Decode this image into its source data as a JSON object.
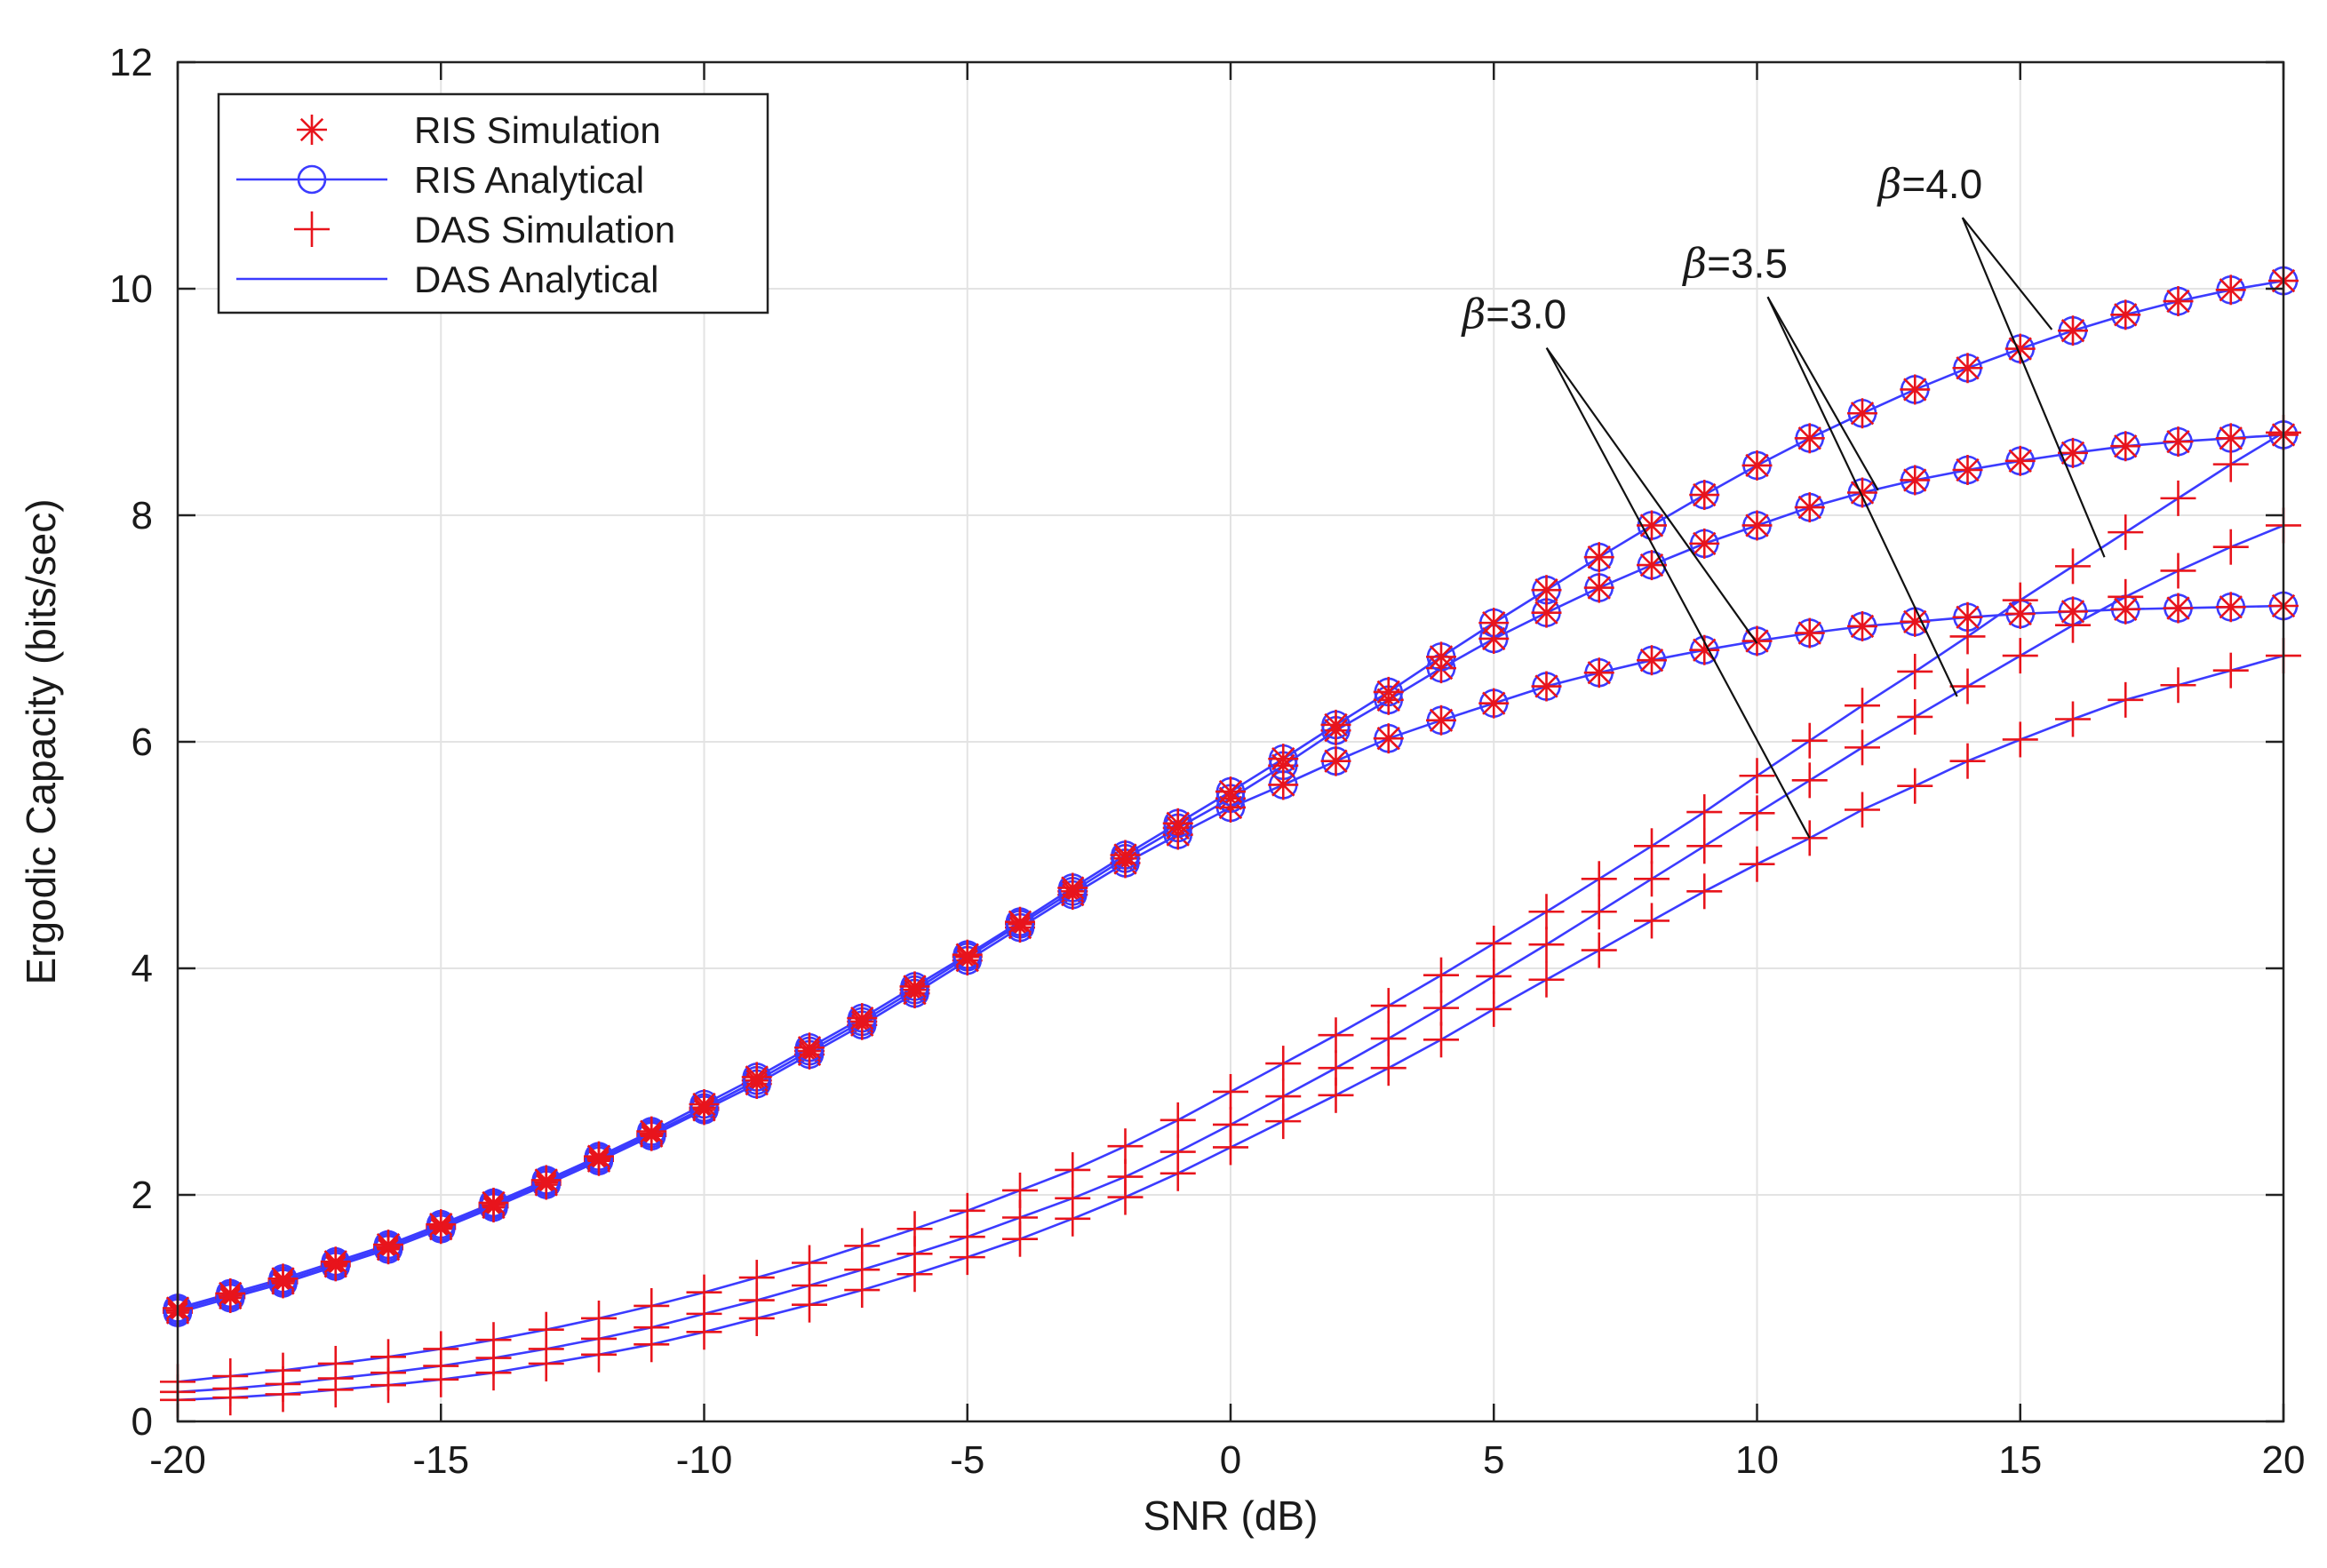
{
  "chart_data": {
    "type": "line",
    "xlabel": "SNR (dB)",
    "ylabel": "Ergodic Capacity (bits/sec)",
    "xlim": [
      -20,
      20
    ],
    "ylim": [
      0,
      12
    ],
    "xticks": [
      -20,
      -15,
      -10,
      -5,
      0,
      5,
      10,
      15,
      20
    ],
    "yticks": [
      0,
      2,
      4,
      6,
      8,
      10,
      12
    ],
    "xtick_labels": [
      "-20",
      "-15",
      "-10",
      "-5",
      "0",
      "5",
      "10",
      "15",
      "20"
    ],
    "ytick_labels": [
      "0",
      "2",
      "4",
      "6",
      "8",
      "10",
      "12"
    ],
    "grid": true,
    "legend_position": "top-left",
    "legend": [
      {
        "label": "RIS Simulation",
        "marker": "asterisk",
        "color": "#e8141c",
        "line": false
      },
      {
        "label": "RIS Analytical",
        "marker": "circle",
        "color": "#3b3bff",
        "line": true
      },
      {
        "label": "DAS Simulation",
        "marker": "plus",
        "color": "#e8141c",
        "line": false
      },
      {
        "label": "DAS Analytical",
        "marker": "none",
        "color": "#3b3bff",
        "line": true
      }
    ],
    "colors": {
      "simulation": "#e8141c",
      "analytical": "#3b3bff",
      "annotation": "#111111"
    },
    "x": [
      -20,
      -19,
      -18,
      -17,
      -16,
      -15,
      -14,
      -13,
      -12,
      -11,
      -10,
      -9,
      -8,
      -7,
      -6,
      -5,
      -4,
      -3,
      -2,
      -1,
      0,
      1,
      2,
      3,
      4,
      5,
      6,
      7,
      8,
      9,
      10,
      11,
      12,
      13,
      14,
      15,
      16,
      17,
      18,
      19,
      20
    ],
    "series": [
      {
        "name": "RIS, β=3.0",
        "system": "RIS",
        "beta": 3.0,
        "values": [
          0.96,
          1.09,
          1.22,
          1.37,
          1.52,
          1.7,
          1.89,
          2.09,
          2.3,
          2.52,
          2.75,
          2.98,
          3.24,
          3.5,
          3.78,
          4.07,
          4.36,
          4.65,
          4.93,
          5.18,
          5.42,
          5.62,
          5.83,
          6.03,
          6.19,
          6.34,
          6.49,
          6.61,
          6.72,
          6.81,
          6.89,
          6.96,
          7.02,
          7.06,
          7.1,
          7.13,
          7.15,
          7.17,
          7.18,
          7.19,
          7.2
        ]
      },
      {
        "name": "RIS, β=3.5",
        "system": "RIS",
        "beta": 3.5,
        "values": [
          0.98,
          1.11,
          1.24,
          1.39,
          1.54,
          1.72,
          1.91,
          2.11,
          2.32,
          2.54,
          2.77,
          3.01,
          3.27,
          3.53,
          3.81,
          4.1,
          4.39,
          4.68,
          4.97,
          5.24,
          5.5,
          5.79,
          6.1,
          6.37,
          6.65,
          6.91,
          7.14,
          7.36,
          7.56,
          7.75,
          7.91,
          8.07,
          8.2,
          8.31,
          8.4,
          8.48,
          8.55,
          8.61,
          8.65,
          8.68,
          8.71
        ]
      },
      {
        "name": "RIS, β=4.0",
        "system": "RIS",
        "beta": 4.0,
        "values": [
          1.0,
          1.13,
          1.26,
          1.41,
          1.56,
          1.74,
          1.93,
          2.13,
          2.34,
          2.56,
          2.8,
          3.04,
          3.3,
          3.56,
          3.84,
          4.12,
          4.41,
          4.71,
          5.0,
          5.28,
          5.56,
          5.85,
          6.15,
          6.44,
          6.75,
          7.05,
          7.34,
          7.63,
          7.91,
          8.18,
          8.44,
          8.68,
          8.9,
          9.11,
          9.3,
          9.47,
          9.63,
          9.77,
          9.89,
          9.99,
          10.07
        ]
      },
      {
        "name": "DAS, β=3.0",
        "system": "DAS",
        "beta": 3.0,
        "values": [
          0.19,
          0.21,
          0.24,
          0.28,
          0.32,
          0.37,
          0.43,
          0.51,
          0.59,
          0.68,
          0.79,
          0.91,
          1.03,
          1.16,
          1.3,
          1.45,
          1.61,
          1.79,
          1.98,
          2.19,
          2.42,
          2.65,
          2.88,
          3.12,
          3.37,
          3.64,
          3.9,
          4.16,
          4.42,
          4.68,
          4.92,
          5.15,
          5.4,
          5.61,
          5.83,
          6.02,
          6.2,
          6.37,
          6.5,
          6.63,
          6.76
        ]
      },
      {
        "name": "DAS, β=3.5",
        "system": "DAS",
        "beta": 3.5,
        "values": [
          0.26,
          0.29,
          0.33,
          0.38,
          0.43,
          0.49,
          0.56,
          0.64,
          0.73,
          0.83,
          0.95,
          1.07,
          1.2,
          1.34,
          1.48,
          1.63,
          1.8,
          1.97,
          2.16,
          2.38,
          2.62,
          2.87,
          3.12,
          3.38,
          3.65,
          3.93,
          4.21,
          4.5,
          4.79,
          5.08,
          5.37,
          5.66,
          5.95,
          6.22,
          6.49,
          6.76,
          7.03,
          7.28,
          7.51,
          7.72,
          7.91
        ]
      },
      {
        "name": "DAS, β=4.0",
        "system": "DAS",
        "beta": 4.0,
        "values": [
          0.35,
          0.4,
          0.45,
          0.51,
          0.57,
          0.64,
          0.72,
          0.81,
          0.91,
          1.02,
          1.14,
          1.27,
          1.4,
          1.55,
          1.7,
          1.86,
          2.04,
          2.22,
          2.43,
          2.66,
          2.91,
          3.16,
          3.41,
          3.67,
          3.94,
          4.22,
          4.5,
          4.79,
          5.08,
          5.38,
          5.7,
          6.01,
          6.32,
          6.62,
          6.93,
          7.25,
          7.55,
          7.85,
          8.15,
          8.45,
          8.73
        ]
      }
    ],
    "annotations": [
      {
        "beta_symbol": "β",
        "text": "=3.0",
        "label_at": [
          4.4,
          9.65
        ],
        "pointers": [
          [
            10.0,
            6.87
          ],
          [
            11.0,
            5.15
          ]
        ]
      },
      {
        "beta_symbol": "β",
        "text": "=3.5",
        "label_at": [
          8.6,
          10.1
        ],
        "pointers": [
          [
            12.3,
            8.22
          ],
          [
            13.8,
            6.4
          ]
        ]
      },
      {
        "beta_symbol": "β",
        "text": "=4.0",
        "label_at": [
          12.3,
          10.8
        ],
        "pointers": [
          [
            15.6,
            9.64
          ],
          [
            16.6,
            7.63
          ]
        ]
      }
    ]
  }
}
